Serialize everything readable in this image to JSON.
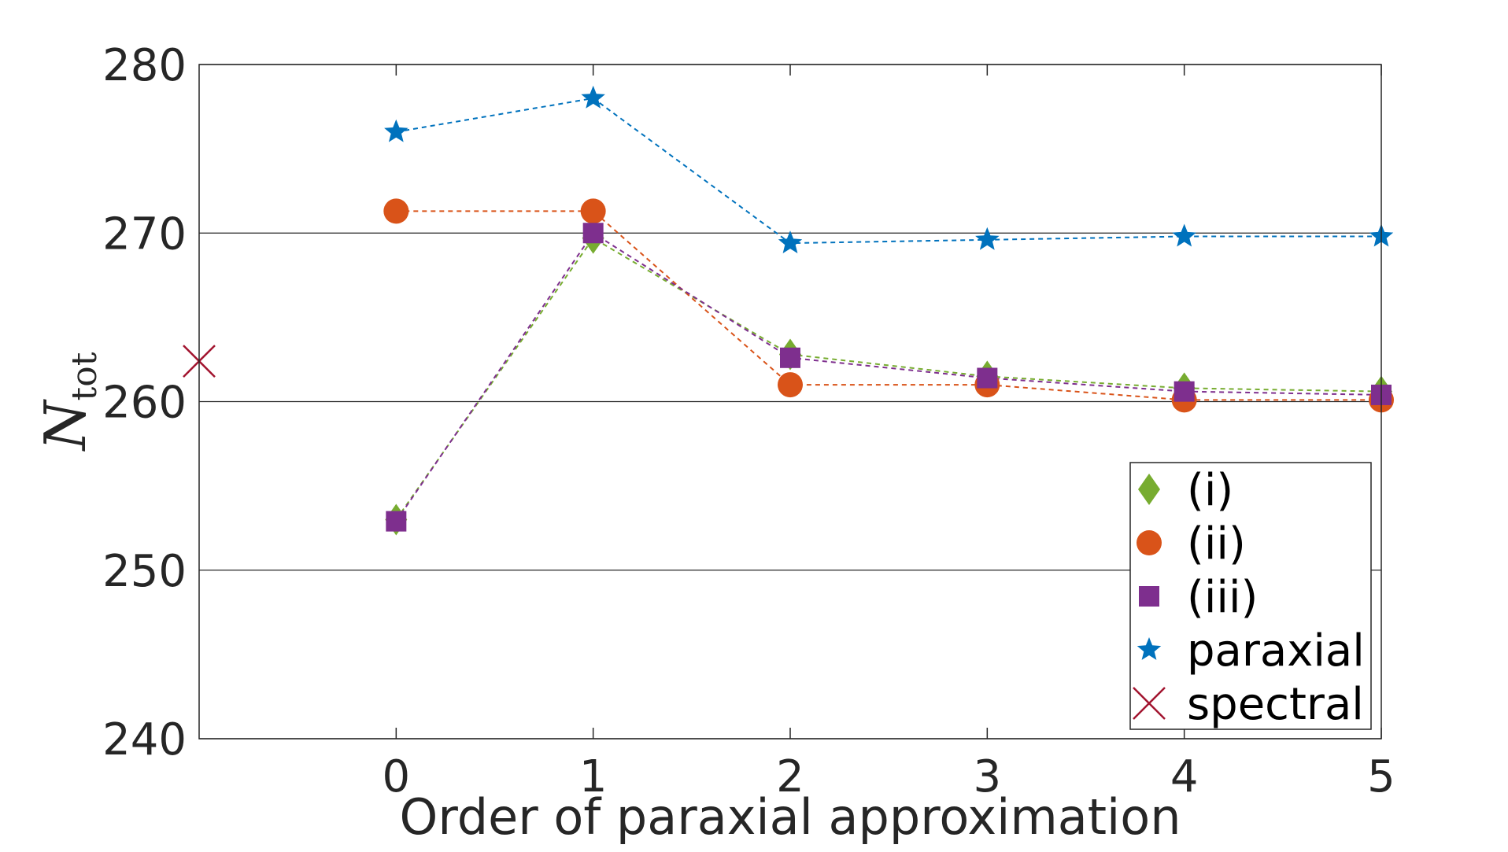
{
  "chart_data": {
    "type": "line",
    "title": "",
    "xlabel": "Order of paraxial approximation",
    "ylabel": "N",
    "ylabel_subscript": "tot",
    "x": [
      0,
      1,
      2,
      3,
      4,
      5
    ],
    "xticks": [
      "0",
      "1",
      "2",
      "3",
      "4",
      "5"
    ],
    "yticks": [
      "240",
      "250",
      "260",
      "270",
      "280"
    ],
    "xlim": [
      -1,
      5
    ],
    "ylim": [
      240,
      280
    ],
    "grid": "horizontal",
    "legend_position": "bottom-right",
    "series": [
      {
        "name": "(i)",
        "marker": "diamond",
        "color": "#77AC30",
        "values": [
          253.0,
          269.7,
          262.8,
          261.5,
          260.8,
          260.6
        ]
      },
      {
        "name": "(ii)",
        "marker": "circle",
        "color": "#D95319",
        "values": [
          271.3,
          271.3,
          261.0,
          261.0,
          260.1,
          260.1
        ]
      },
      {
        "name": "(iii)",
        "marker": "square",
        "color": "#7E2F8E",
        "values": [
          252.9,
          270.0,
          262.6,
          261.4,
          260.6,
          260.4
        ]
      },
      {
        "name": "paraxial",
        "marker": "star",
        "color": "#0072BD",
        "values": [
          276.0,
          278.0,
          269.4,
          269.6,
          269.8,
          269.8
        ]
      },
      {
        "name": "spectral",
        "marker": "x",
        "color": "#A2142F",
        "points": [
          {
            "x": -1,
            "y": 262.4
          }
        ]
      }
    ]
  }
}
